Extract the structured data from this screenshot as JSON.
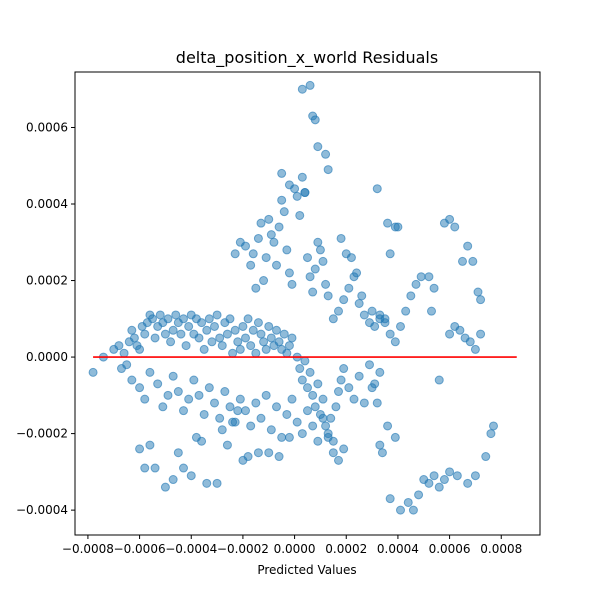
{
  "chart_data": {
    "type": "scatter",
    "title": "delta_position_x_world Residuals",
    "xlabel": "Predicted Values",
    "ylabel": "",
    "xlim": [
      -0.00085,
      0.00095
    ],
    "ylim": [
      -0.000465,
      0.000745
    ],
    "x_ticks": [
      -0.0008,
      -0.0006,
      -0.0004,
      -0.0002,
      0.0,
      0.0002,
      0.0004,
      0.0006,
      0.0008
    ],
    "x_tick_labels": [
      "−0.0008",
      "−0.0006",
      "−0.0004",
      "−0.0002",
      "0.0000",
      "0.0002",
      "0.0004",
      "0.0006",
      "0.0008"
    ],
    "y_ticks": [
      -0.0004,
      -0.0002,
      0.0,
      0.0002,
      0.0004,
      0.0006
    ],
    "y_tick_labels": [
      "−0.0004",
      "−0.0002",
      "0.0000",
      "0.0002",
      "0.0004",
      "0.0006"
    ],
    "reference_line": {
      "y": 0.0,
      "x_range": [
        -0.00078,
        0.00086
      ],
      "color": "#ff0000"
    },
    "marker_color": "#1f77b4",
    "grid": false,
    "series": [
      {
        "points": [
          [
            -0.00078,
            -4e-05
          ],
          [
            -0.00074,
            0.0
          ],
          [
            -0.0007,
            2e-05
          ],
          [
            -0.00068,
            3e-05
          ],
          [
            -0.00066,
            1e-05
          ],
          [
            -0.00065,
            -2e-05
          ],
          [
            -0.00064,
            4e-05
          ],
          [
            -0.00063,
            7e-05
          ],
          [
            -0.00062,
            5e-05
          ],
          [
            -0.00061,
            3e-05
          ],
          [
            -0.0006,
            2e-05
          ],
          [
            -0.00059,
            8e-05
          ],
          [
            -0.00058,
            6e-05
          ],
          [
            -0.00057,
            9e-05
          ],
          [
            -0.00056,
            0.00011
          ],
          [
            -0.00055,
            0.0001
          ],
          [
            -0.00054,
            5e-05
          ],
          [
            -0.00053,
            8e-05
          ],
          [
            -0.00052,
            0.00011
          ],
          [
            -0.00051,
            9e-05
          ],
          [
            -0.0005,
            6e-05
          ],
          [
            -0.00049,
            0.0001
          ],
          [
            -0.00048,
            4e-05
          ],
          [
            -0.00047,
            7e-05
          ],
          [
            -0.00046,
            0.00011
          ],
          [
            -0.00045,
            9e-05
          ],
          [
            -0.00044,
            6e-05
          ],
          [
            -0.00043,
            0.0001
          ],
          [
            -0.00042,
            3e-05
          ],
          [
            -0.00041,
            8e-05
          ],
          [
            -0.0004,
            0.00011
          ],
          [
            -0.00039,
            6e-05
          ],
          [
            -0.00038,
            0.0001
          ],
          [
            -0.00037,
            5e-05
          ],
          [
            -0.00036,
            9e-05
          ],
          [
            -0.00035,
            2e-05
          ],
          [
            -0.00034,
            7e-05
          ],
          [
            -0.00033,
            0.0001
          ],
          [
            -0.00032,
            4e-05
          ],
          [
            -0.00031,
            8e-05
          ],
          [
            -0.0003,
            0.00011
          ],
          [
            -0.00029,
            5e-05
          ],
          [
            -0.00028,
            3e-05
          ],
          [
            -0.00027,
            9e-05
          ],
          [
            -0.00026,
            6e-05
          ],
          [
            -0.00025,
            0.0001
          ],
          [
            -0.00024,
            1e-05
          ],
          [
            -0.00023,
            7e-05
          ],
          [
            -0.00022,
            4e-05
          ],
          [
            -0.00021,
            2e-05
          ],
          [
            -0.0002,
            8e-05
          ],
          [
            -0.00019,
            5e-05
          ],
          [
            -0.00018,
            0.0001
          ],
          [
            -0.00017,
            3e-05
          ],
          [
            -0.00016,
            7e-05
          ],
          [
            -0.00015,
            1e-05
          ],
          [
            -0.00014,
            9e-05
          ],
          [
            -0.00013,
            6e-05
          ],
          [
            -0.00012,
            4e-05
          ],
          [
            -0.00011,
            2e-05
          ],
          [
            -0.0001,
            8e-05
          ],
          [
            -9e-05,
            5e-05
          ],
          [
            -8e-05,
            3e-05
          ],
          [
            -7e-05,
            7e-05
          ],
          [
            -6e-05,
            4e-05
          ],
          [
            -5e-05,
            2e-05
          ],
          [
            -4e-05,
            6e-05
          ],
          [
            -3e-05,
            1e-05
          ],
          [
            -2e-05,
            3e-05
          ],
          [
            -1e-05,
            5e-05
          ],
          [
            -0.00067,
            -3e-05
          ],
          [
            -0.00063,
            -6e-05
          ],
          [
            -0.0006,
            -8e-05
          ],
          [
            -0.00058,
            -0.00011
          ],
          [
            -0.00056,
            -4e-05
          ],
          [
            -0.00053,
            -7e-05
          ],
          [
            -0.00051,
            -0.00013
          ],
          [
            -0.00049,
            -0.0001
          ],
          [
            -0.00047,
            -5e-05
          ],
          [
            -0.00045,
            -9e-05
          ],
          [
            -0.00043,
            -0.00014
          ],
          [
            -0.00041,
            -0.00011
          ],
          [
            -0.00039,
            -6e-05
          ],
          [
            -0.00037,
            -0.0001
          ],
          [
            -0.00035,
            -0.00015
          ],
          [
            -0.00033,
            -8e-05
          ],
          [
            -0.00031,
            -0.00012
          ],
          [
            -0.00029,
            -0.00016
          ],
          [
            -0.00027,
            -9e-05
          ],
          [
            -0.00025,
            -0.00013
          ],
          [
            -0.00023,
            -0.00017
          ],
          [
            -0.00021,
            -0.00011
          ],
          [
            -0.00019,
            -0.00014
          ],
          [
            -0.00017,
            -0.00018
          ],
          [
            -0.00015,
            -0.00012
          ],
          [
            -0.00013,
            -0.00016
          ],
          [
            -0.00011,
            -0.0001
          ],
          [
            -9e-05,
            -0.00019
          ],
          [
            -7e-05,
            -0.00013
          ],
          [
            -5e-05,
            -0.00021
          ],
          [
            -3e-05,
            -0.00015
          ],
          [
            -1e-05,
            -0.00011
          ],
          [
            1e-05,
            -0.00017
          ],
          [
            3e-05,
            -0.0002
          ],
          [
            5e-05,
            -0.00014
          ],
          [
            7e-05,
            -0.00018
          ],
          [
            9e-05,
            -0.00022
          ],
          [
            0.00011,
            -0.00016
          ],
          [
            0.00013,
            -0.0002
          ],
          [
            0.00015,
            -0.00025
          ],
          [
            0.00017,
            -0.00027
          ],
          [
            0.00019,
            -0.00024
          ],
          [
            -0.0006,
            -0.00024
          ],
          [
            -0.00058,
            -0.00029
          ],
          [
            -0.00056,
            -0.00023
          ],
          [
            -0.00054,
            -0.00029
          ],
          [
            -0.0005,
            -0.00034
          ],
          [
            -0.00047,
            -0.00032
          ],
          [
            -0.00045,
            -0.00025
          ],
          [
            -0.00043,
            -0.00029
          ],
          [
            -0.0004,
            -0.00031
          ],
          [
            -0.00038,
            -0.00021
          ],
          [
            -0.00036,
            -0.00022
          ],
          [
            -0.00034,
            -0.00033
          ],
          [
            -0.0003,
            -0.00033
          ],
          [
            -0.00028,
            -0.00019
          ],
          [
            -0.00026,
            -0.00023
          ],
          [
            -0.00024,
            -0.00017
          ],
          [
            -0.00022,
            -0.00014
          ],
          [
            -0.0002,
            -0.00027
          ],
          [
            -0.00018,
            -0.00026
          ],
          [
            -0.00014,
            -0.00025
          ],
          [
            -0.0001,
            -0.00025
          ],
          [
            -6e-05,
            -0.00026
          ],
          [
            -2e-05,
            -0.00021
          ],
          [
            -0.00023,
            0.00027
          ],
          [
            -0.00021,
            0.0003
          ],
          [
            -0.00019,
            0.00029
          ],
          [
            -0.00017,
            0.00024
          ],
          [
            -0.00016,
            0.00027
          ],
          [
            -0.00015,
            0.00018
          ],
          [
            -0.00014,
            0.00031
          ],
          [
            -0.00013,
            0.00035
          ],
          [
            -0.00012,
            0.0002
          ],
          [
            -0.00011,
            0.00026
          ],
          [
            -0.0001,
            0.00036
          ],
          [
            -9e-05,
            0.00032
          ],
          [
            -8e-05,
            0.0003
          ],
          [
            -7e-05,
            0.00024
          ],
          [
            -6e-05,
            0.00034
          ],
          [
            -5e-05,
            0.00041
          ],
          [
            -4e-05,
            0.00038
          ],
          [
            -3e-05,
            0.00028
          ],
          [
            -2e-05,
            0.00022
          ],
          [
            -1e-05,
            0.00019
          ],
          [
            0.0,
            0.00044
          ],
          [
            1e-05,
            0.00042
          ],
          [
            2e-05,
            0.00037
          ],
          [
            3e-05,
            0.00047
          ],
          [
            4e-05,
            0.00043
          ],
          [
            5e-05,
            0.00026
          ],
          [
            6e-05,
            0.00021
          ],
          [
            7e-05,
            0.00017
          ],
          [
            8e-05,
            0.00023
          ],
          [
            9e-05,
            0.0003
          ],
          [
            0.0001,
            0.00028
          ],
          [
            0.00011,
            0.00025
          ],
          [
            0.00012,
            0.00019
          ],
          [
            0.00013,
            0.00016
          ],
          [
            3e-05,
            0.0007
          ],
          [
            6e-05,
            0.00071
          ],
          [
            7e-05,
            0.00063
          ],
          [
            8e-05,
            0.00062
          ],
          [
            9e-05,
            0.00055
          ],
          [
            0.00012,
            0.00053
          ],
          [
            0.00013,
            0.00049
          ],
          [
            -5e-05,
            0.00048
          ],
          [
            -2e-05,
            0.00045
          ],
          [
            4e-05,
            0.00043
          ],
          [
            1e-05,
            0.0
          ],
          [
            2e-05,
            -3e-05
          ],
          [
            3e-05,
            -6e-05
          ],
          [
            4e-05,
            -1e-05
          ],
          [
            5e-05,
            -8e-05
          ],
          [
            6e-05,
            -4e-05
          ],
          [
            7e-05,
            -0.0001
          ],
          [
            8e-05,
            -0.00013
          ],
          [
            9e-05,
            -7e-05
          ],
          [
            0.0001,
            -0.00015
          ],
          [
            0.00011,
            -0.00011
          ],
          [
            0.00012,
            -0.00018
          ],
          [
            0.00013,
            -0.00021
          ],
          [
            0.00014,
            -0.00016
          ],
          [
            0.00015,
            -0.00022
          ],
          [
            0.00016,
            -0.00013
          ],
          [
            0.00017,
            -9e-05
          ],
          [
            0.00018,
            -6e-05
          ],
          [
            0.00019,
            -3e-05
          ],
          [
            0.00021,
            -8e-05
          ],
          [
            0.00023,
            -0.00011
          ],
          [
            0.00025,
            -5e-05
          ],
          [
            0.00027,
            -0.00012
          ],
          [
            0.00029,
            -2e-05
          ],
          [
            0.00031,
            -7e-05
          ],
          [
            0.00033,
            -4e-05
          ],
          [
            0.00015,
            0.0001
          ],
          [
            0.00017,
            0.00012
          ],
          [
            0.00019,
            0.00015
          ],
          [
            0.00021,
            0.00018
          ],
          [
            0.00023,
            0.00021
          ],
          [
            0.00025,
            0.00014
          ],
          [
            0.00027,
            0.00011
          ],
          [
            0.00029,
            9e-05
          ],
          [
            0.00031,
            8e-05
          ],
          [
            0.00033,
            0.00011
          ],
          [
            0.00035,
            9e-05
          ],
          [
            0.00037,
            6e-05
          ],
          [
            0.00039,
            4e-05
          ],
          [
            0.00041,
            8e-05
          ],
          [
            0.00043,
            0.00012
          ],
          [
            0.00045,
            0.00016
          ],
          [
            0.00047,
            0.00019
          ],
          [
            0.00049,
            0.00021
          ],
          [
            0.00018,
            0.00031
          ],
          [
            0.0002,
            0.00027
          ],
          [
            0.00022,
            0.00026
          ],
          [
            0.00024,
            0.00022
          ],
          [
            0.00026,
            0.00016
          ],
          [
            0.0003,
            0.00012
          ],
          [
            0.00033,
            0.0001
          ],
          [
            0.00035,
            0.0001
          ],
          [
            0.00037,
            0.00027
          ],
          [
            0.00039,
            0.00034
          ],
          [
            0.00032,
            0.00044
          ],
          [
            0.00036,
            0.00035
          ],
          [
            0.0004,
            0.00034
          ],
          [
            0.0003,
            -8e-05
          ],
          [
            0.00032,
            -0.00012
          ],
          [
            0.00033,
            -0.00023
          ],
          [
            0.00034,
            -0.00025
          ],
          [
            0.00036,
            -0.00018
          ],
          [
            0.00037,
            -0.00037
          ],
          [
            0.00039,
            -0.00021
          ],
          [
            0.00041,
            -0.0004
          ],
          [
            0.00044,
            -0.00038
          ],
          [
            0.00046,
            -0.0004
          ],
          [
            0.00048,
            -0.00036
          ],
          [
            0.0005,
            -0.00032
          ],
          [
            0.00052,
            -0.00033
          ],
          [
            0.00054,
            -0.00031
          ],
          [
            0.00056,
            -0.00034
          ],
          [
            0.00058,
            -0.00032
          ],
          [
            0.0006,
            -0.0003
          ],
          [
            0.00063,
            -0.00031
          ],
          [
            0.00067,
            -0.00033
          ],
          [
            0.0007,
            -0.00031
          ],
          [
            0.00074,
            -0.00026
          ],
          [
            0.00076,
            -0.0002
          ],
          [
            0.00077,
            -0.00018
          ],
          [
            0.00056,
            -6e-05
          ],
          [
            0.0006,
            6e-05
          ],
          [
            0.00062,
            8e-05
          ],
          [
            0.00064,
            7e-05
          ],
          [
            0.00066,
            5e-05
          ],
          [
            0.00068,
            4e-05
          ],
          [
            0.0007,
            2e-05
          ],
          [
            0.00072,
            6e-05
          ],
          [
            0.00058,
            0.00035
          ],
          [
            0.0006,
            0.00036
          ],
          [
            0.00062,
            0.00034
          ],
          [
            0.00065,
            0.00025
          ],
          [
            0.00067,
            0.00029
          ],
          [
            0.00069,
            0.00025
          ],
          [
            0.00071,
            0.00017
          ],
          [
            0.00072,
            0.00015
          ],
          [
            0.00052,
            0.00021
          ],
          [
            0.00054,
            0.00018
          ],
          [
            0.00053,
            0.00012
          ]
        ]
      }
    ]
  }
}
